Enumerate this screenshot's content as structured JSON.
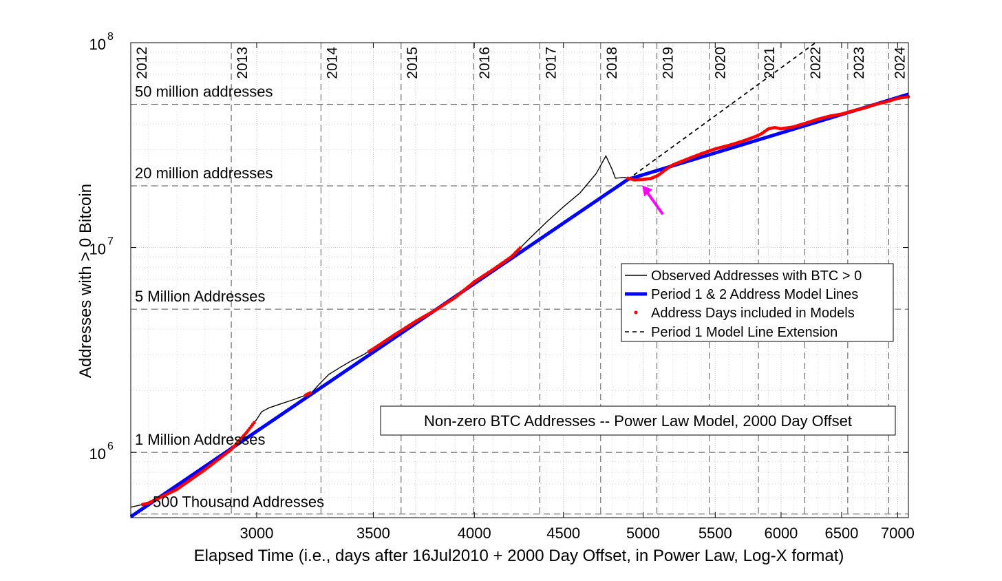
{
  "chart_data": {
    "type": "line",
    "title": "Non-zero BTC Addresses -- Power Law Model, 2000 Day Offset",
    "xlabel": "Elapsed Time (i.e., days after 16Jul2010 + 2000 Day Offset, in Power Law, Log-X format)",
    "ylabel": "Addresses with > 0 Bitcoin",
    "x_scale": "log",
    "y_scale": "log",
    "xlim": [
      2540,
      7100
    ],
    "ylim": [
      480000,
      100000000
    ],
    "x_ticks": [
      {
        "value": 3000,
        "label": "3000"
      },
      {
        "value": 3500,
        "label": "3500"
      },
      {
        "value": 4000,
        "label": "4000"
      },
      {
        "value": 4500,
        "label": "4500"
      },
      {
        "value": 5000,
        "label": "5000"
      },
      {
        "value": 5500,
        "label": "5500"
      },
      {
        "value": 6000,
        "label": "6000"
      },
      {
        "value": 6500,
        "label": "6500"
      },
      {
        "value": 7000,
        "label": "7000"
      }
    ],
    "y_ticks": [
      {
        "value": 1000000,
        "base": "10",
        "exp": "6"
      },
      {
        "value": 10000000,
        "base": "10",
        "exp": "7"
      },
      {
        "value": 100000000,
        "base": "10",
        "exp": "8"
      }
    ],
    "year_markers": [
      {
        "label": "2012",
        "x": 2540
      },
      {
        "label": "2013",
        "x": 2901
      },
      {
        "label": "2014",
        "x": 3266
      },
      {
        "label": "2015",
        "x": 3631
      },
      {
        "label": "2016",
        "x": 3996
      },
      {
        "label": "2017",
        "x": 4362
      },
      {
        "label": "2018",
        "x": 4727
      },
      {
        "label": "2019",
        "x": 5092
      },
      {
        "label": "2020",
        "x": 5457
      },
      {
        "label": "2021",
        "x": 5823
      },
      {
        "label": "2022",
        "x": 6188
      },
      {
        "label": "2023",
        "x": 6553
      },
      {
        "label": "2024",
        "x": 6918
      }
    ],
    "reference_lines": [
      {
        "label": "50 million addresses",
        "y": 50000000
      },
      {
        "label": "20 million addresses",
        "y": 20000000
      },
      {
        "label": "5 Million Addresses",
        "y": 5000000
      },
      {
        "label": "1 Million Addresses",
        "y": 1000000
      },
      {
        "label": "500 Thousand Addresses",
        "y": 500000
      }
    ],
    "grid": true,
    "legend_position": "right",
    "series": [
      {
        "name": "Observed Addresses with BTC > 0",
        "color": "#000000",
        "style": "line",
        "points": [
          [
            2540,
            540000
          ],
          [
            2600,
            565000
          ],
          [
            2700,
            660000
          ],
          [
            2800,
            820000
          ],
          [
            2900,
            1030000
          ],
          [
            2960,
            1250000
          ],
          [
            3000,
            1450000
          ],
          [
            3020,
            1580000
          ],
          [
            3050,
            1650000
          ],
          [
            3100,
            1730000
          ],
          [
            3150,
            1810000
          ],
          [
            3200,
            1900000
          ],
          [
            3230,
            1980000
          ],
          [
            3260,
            2160000
          ],
          [
            3300,
            2400000
          ],
          [
            3350,
            2600000
          ],
          [
            3400,
            2800000
          ],
          [
            3450,
            2980000
          ],
          [
            3500,
            3200000
          ],
          [
            3600,
            3750000
          ],
          [
            3700,
            4350000
          ],
          [
            3800,
            4950000
          ],
          [
            3900,
            5700000
          ],
          [
            4000,
            6800000
          ],
          [
            4100,
            7800000
          ],
          [
            4200,
            9000000
          ],
          [
            4300,
            11000000
          ],
          [
            4400,
            13300000
          ],
          [
            4500,
            15800000
          ],
          [
            4600,
            18500000
          ],
          [
            4700,
            23000000
          ],
          [
            4760,
            28000000
          ],
          [
            4800,
            24000000
          ],
          [
            4820,
            21800000
          ],
          [
            4880,
            22000000
          ],
          [
            4940,
            21400000
          ],
          [
            5000,
            21500000
          ],
          [
            5050,
            21700000
          ],
          [
            5100,
            22500000
          ],
          [
            5150,
            24000000
          ],
          [
            5200,
            25300000
          ],
          [
            5300,
            27000000
          ],
          [
            5400,
            28700000
          ],
          [
            5500,
            30300000
          ],
          [
            5600,
            31500000
          ],
          [
            5700,
            33000000
          ],
          [
            5800,
            34800000
          ],
          [
            5850,
            36000000
          ],
          [
            5900,
            38000000
          ],
          [
            5950,
            38500000
          ],
          [
            6000,
            38000000
          ],
          [
            6100,
            38800000
          ],
          [
            6200,
            40500000
          ],
          [
            6300,
            42300000
          ],
          [
            6400,
            43800000
          ],
          [
            6500,
            44800000
          ],
          [
            6600,
            46500000
          ],
          [
            6700,
            48000000
          ],
          [
            6800,
            50000000
          ],
          [
            6900,
            51500000
          ],
          [
            7000,
            53500000
          ],
          [
            7100,
            54500000
          ]
        ]
      },
      {
        "name": "Period 1 & 2 Address Model Lines",
        "color": "#0000ff",
        "style": "thick-line",
        "segments": [
          [
            [
              2540,
              485000
            ],
            [
              4900,
              21500000
            ]
          ],
          [
            [
              4900,
              21500000
            ],
            [
              7100,
              56000000
            ]
          ]
        ]
      },
      {
        "name": "Address Days included in Models",
        "color": "#ff0000",
        "style": "dots",
        "ranges": [
          [
            2580,
            2990
          ],
          [
            3200,
            3220
          ],
          [
            3480,
            4250
          ],
          [
            4900,
            7100
          ]
        ]
      },
      {
        "name": "Period 1 Model Line Extension",
        "color": "#000000",
        "style": "dashed",
        "segments": [
          [
            [
              4900,
              21500000
            ],
            [
              6280,
              100000000
            ]
          ]
        ]
      }
    ],
    "callout_arrow": {
      "color": "#ff00ff",
      "points_to": [
        4980,
        21400000
      ]
    }
  }
}
